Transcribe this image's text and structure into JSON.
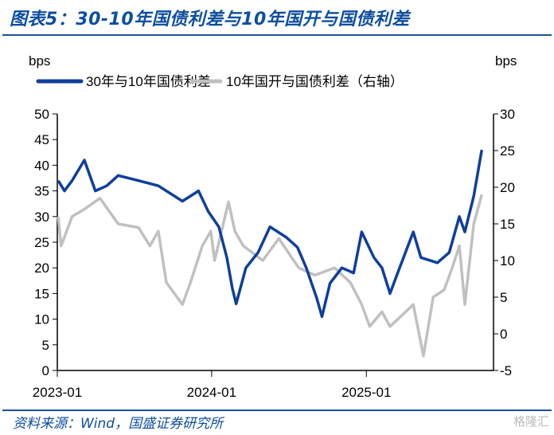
{
  "title": "图表5：30-10年国债利差与10年国开与国债利差",
  "source": "资料来源：Wind，国盛证券研究所",
  "watermark": "格隆汇",
  "chart_data": {
    "type": "line",
    "ylabel_left": "bps",
    "ylabel_right": "bps",
    "ylim_left": [
      0,
      50
    ],
    "ylim_right": [
      -5,
      30
    ],
    "yticks_left": [
      "0",
      "5",
      "10",
      "15",
      "20",
      "25",
      "30",
      "35",
      "40",
      "45",
      "50"
    ],
    "yticks_right": [
      "-5",
      "0",
      "5",
      "10",
      "15",
      "20",
      "25",
      "30"
    ],
    "xticks": [
      "2023-01",
      "2024-01",
      "2025-01"
    ],
    "grid": false,
    "legend": "top",
    "series": [
      {
        "name": "30年与10年国债利差",
        "axis": "left",
        "color": "#0f3f9a",
        "points": [
          [
            "2023-01-03",
            37
          ],
          [
            "2023-01-18",
            35
          ],
          [
            "2023-02-05",
            37
          ],
          [
            "2023-03-06",
            41
          ],
          [
            "2023-04-01",
            35
          ],
          [
            "2023-04-28",
            36
          ],
          [
            "2023-05-25",
            38
          ],
          [
            "2023-07-12",
            37
          ],
          [
            "2023-08-28",
            36
          ],
          [
            "2023-10-24",
            33
          ],
          [
            "2023-12-01",
            35
          ],
          [
            "2023-12-24",
            31
          ],
          [
            "2024-01-18",
            28
          ],
          [
            "2024-02-06",
            22
          ],
          [
            "2024-02-19",
            16
          ],
          [
            "2024-02-28",
            13
          ],
          [
            "2024-03-22",
            20
          ],
          [
            "2024-04-20",
            23
          ],
          [
            "2024-05-18",
            28
          ],
          [
            "2024-06-25",
            26
          ],
          [
            "2024-07-22",
            24
          ],
          [
            "2024-08-12",
            20
          ],
          [
            "2024-09-06",
            14
          ],
          [
            "2024-09-18",
            10.5
          ],
          [
            "2024-10-07",
            17
          ],
          [
            "2024-11-04",
            20
          ],
          [
            "2024-12-02",
            19
          ],
          [
            "2024-12-21",
            27
          ],
          [
            "2025-01-19",
            22
          ],
          [
            "2025-02-07",
            20
          ],
          [
            "2025-02-26",
            15
          ],
          [
            "2025-03-16",
            19
          ],
          [
            "2025-04-22",
            27
          ],
          [
            "2025-05-10",
            22
          ],
          [
            "2025-06-18",
            21
          ],
          [
            "2025-07-16",
            23
          ],
          [
            "2025-08-09",
            30
          ],
          [
            "2025-08-22",
            27
          ],
          [
            "2025-09-12",
            34
          ],
          [
            "2025-10-01",
            43
          ]
        ]
      },
      {
        "name": "10年国开与国债利差（右轴）",
        "axis": "right",
        "color": "#c0c0c0",
        "points": [
          [
            "2023-01-03",
            16
          ],
          [
            "2023-01-10",
            12
          ],
          [
            "2023-02-05",
            16
          ],
          [
            "2023-03-06",
            17
          ],
          [
            "2023-04-12",
            18.5
          ],
          [
            "2023-05-25",
            15
          ],
          [
            "2023-07-12",
            14.5
          ],
          [
            "2023-08-08",
            12
          ],
          [
            "2023-08-28",
            14
          ],
          [
            "2023-09-16",
            7
          ],
          [
            "2023-10-24",
            4
          ],
          [
            "2023-11-12",
            7
          ],
          [
            "2023-12-10",
            12
          ],
          [
            "2023-12-30",
            14
          ],
          [
            "2024-01-08",
            10
          ],
          [
            "2024-02-10",
            18
          ],
          [
            "2024-02-25",
            14
          ],
          [
            "2024-03-16",
            12
          ],
          [
            "2024-05-01",
            10
          ],
          [
            "2024-06-08",
            13
          ],
          [
            "2024-07-25",
            9
          ],
          [
            "2024-09-01",
            8
          ],
          [
            "2024-10-18",
            9
          ],
          [
            "2024-11-24",
            7
          ],
          [
            "2024-12-21",
            4
          ],
          [
            "2025-01-09",
            1
          ],
          [
            "2025-02-07",
            3
          ],
          [
            "2025-02-26",
            1
          ],
          [
            "2025-04-04",
            3
          ],
          [
            "2025-04-22",
            4
          ],
          [
            "2025-05-16",
            -3
          ],
          [
            "2025-06-08",
            5
          ],
          [
            "2025-07-04",
            6
          ],
          [
            "2025-07-23",
            9
          ],
          [
            "2025-08-09",
            12
          ],
          [
            "2025-08-22",
            4
          ],
          [
            "2025-09-12",
            15
          ],
          [
            "2025-10-01",
            19
          ]
        ]
      }
    ]
  }
}
